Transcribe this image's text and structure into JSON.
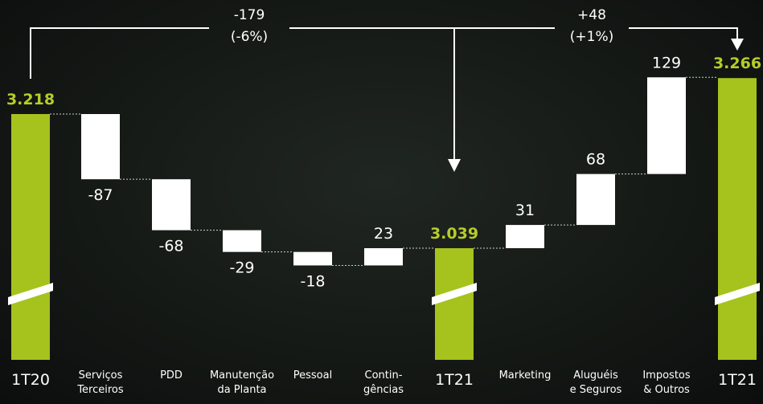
{
  "colors": {
    "total": "#a6c21d",
    "step": "#ffffff",
    "accent_text": "#b6cc2a",
    "background": "#161a17"
  },
  "chart_data": {
    "type": "bar",
    "subtype": "waterfall",
    "categories": [
      {
        "id": "1t20",
        "lines": [
          "1T20"
        ],
        "kind": "total"
      },
      {
        "id": "servicos",
        "lines": [
          "Serviços",
          "Terceiros"
        ],
        "kind": "step"
      },
      {
        "id": "pdd",
        "lines": [
          "PDD"
        ],
        "kind": "step"
      },
      {
        "id": "manutencao",
        "lines": [
          "Manutenção",
          "da Planta"
        ],
        "kind": "step"
      },
      {
        "id": "pessoal",
        "lines": [
          "Pessoal"
        ],
        "kind": "step"
      },
      {
        "id": "contingencias",
        "lines": [
          "Contin-",
          "gências"
        ],
        "kind": "step"
      },
      {
        "id": "1t21a",
        "lines": [
          "1T21"
        ],
        "kind": "total"
      },
      {
        "id": "marketing",
        "lines": [
          "Marketing"
        ],
        "kind": "step"
      },
      {
        "id": "alugueis",
        "lines": [
          "Aluguéis",
          "e Seguros"
        ],
        "kind": "step"
      },
      {
        "id": "impostos",
        "lines": [
          "Impostos",
          "& Outros"
        ],
        "kind": "step"
      },
      {
        "id": "1t21b",
        "lines": [
          "1T21"
        ],
        "kind": "total"
      }
    ],
    "values": [
      3218,
      -87,
      -68,
      -29,
      -18,
      23,
      3039,
      31,
      68,
      129,
      3266
    ],
    "value_labels": [
      "3.218",
      "-87",
      "-68",
      "-29",
      "-18",
      "23",
      "3.039",
      "31",
      "68",
      "129",
      "3.266"
    ],
    "axis_break": true,
    "brackets": [
      {
        "label_lines": [
          "-179",
          "(-6%)"
        ]
      },
      {
        "label_lines": [
          "+48",
          "(+1%)"
        ]
      }
    ]
  }
}
